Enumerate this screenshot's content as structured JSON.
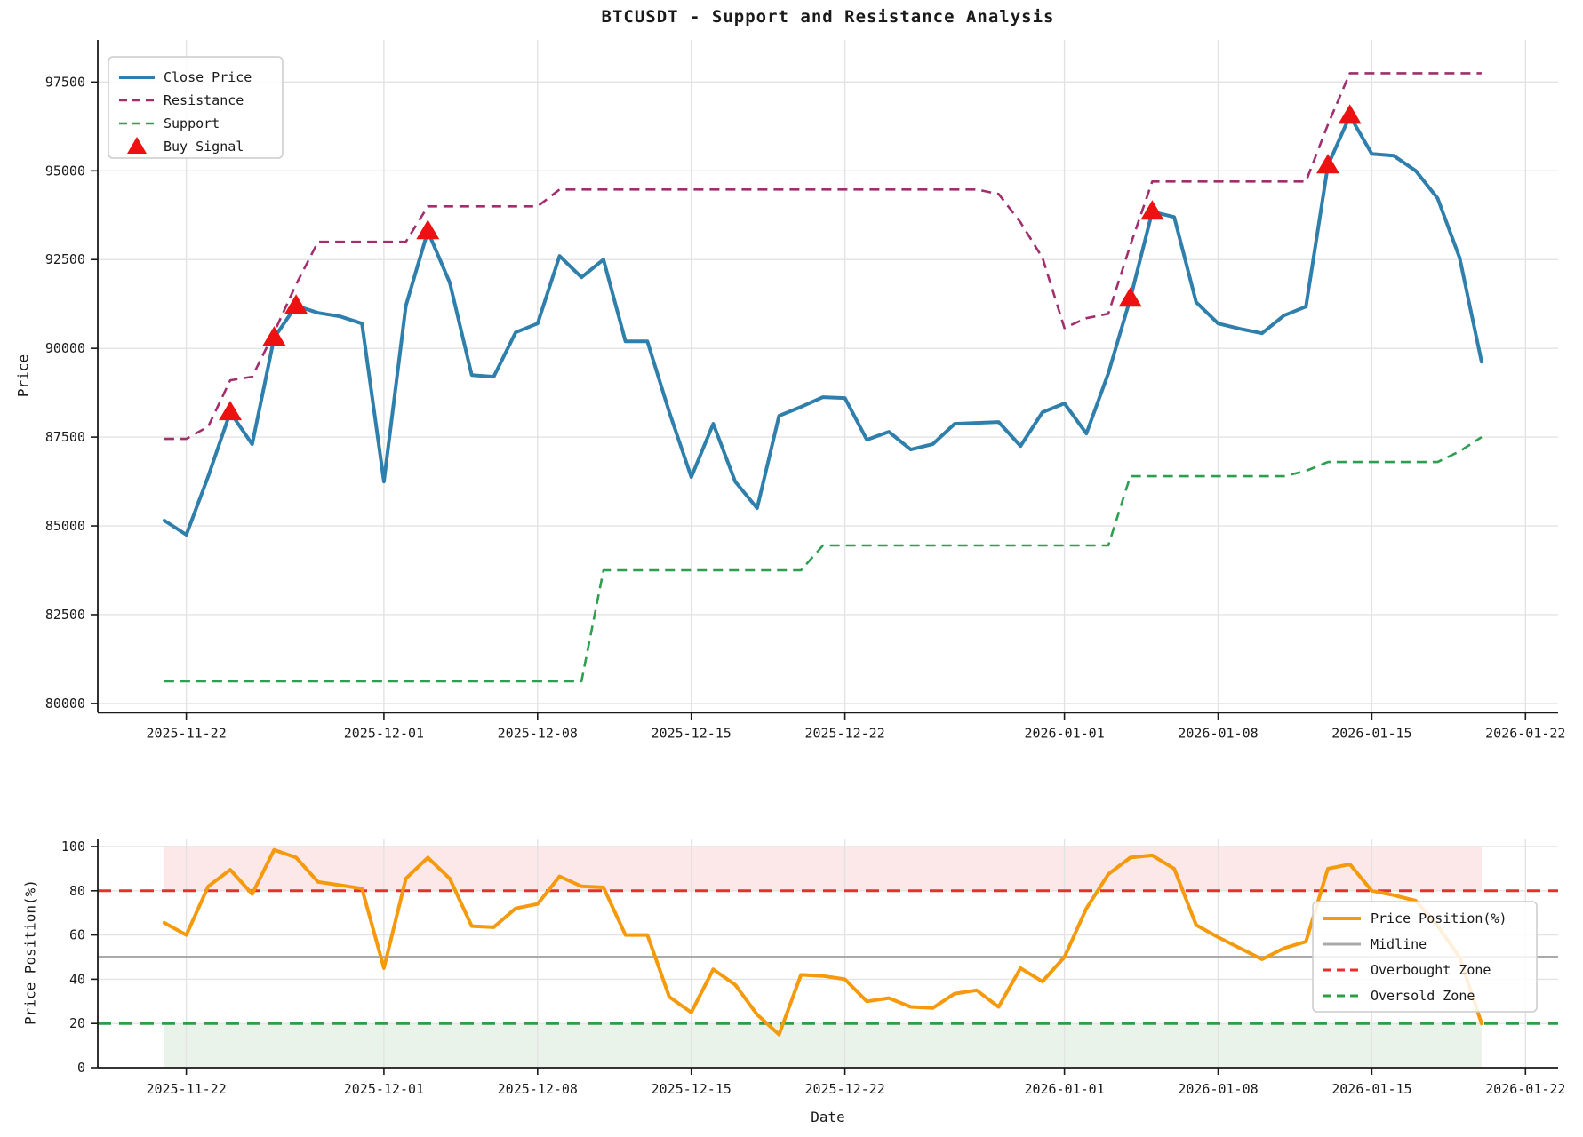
{
  "title": "BTCUSDT - Support and Resistance Analysis",
  "colors": {
    "close": "#2f7fad",
    "resistance": "#a12e6d",
    "support": "#2e9e50",
    "buy_signal": "#ee1111",
    "price_position": "#f59a0c",
    "midline": "#aaaaaa",
    "overbought": "#e63030",
    "oversold": "#2e9e45",
    "overbought_fill": "rgba(230,80,80,0.13)",
    "oversold_fill": "rgba(90,165,90,0.13)",
    "grid": "#e3e3e3",
    "spine": "#1a1a1a",
    "legend_border": "#cccccc",
    "legend_bg": "rgba(255,255,255,0.85)"
  },
  "top_chart": {
    "ylabel": "Price",
    "legend": [
      "Close Price",
      "Resistance",
      "Support",
      "Buy Signal"
    ]
  },
  "bottom_chart": {
    "ylabel": "Price Position(%)",
    "xlabel": "Date",
    "legend": [
      "Price Position(%)",
      "Midline",
      "Overbought Zone",
      "Oversold Zone"
    ]
  },
  "chart_data": [
    {
      "type": "line",
      "title": "BTCUSDT - Support and Resistance Analysis",
      "ylabel": "Price",
      "ylim": [
        79740,
        98685
      ],
      "yticks": [
        80000,
        82500,
        85000,
        87500,
        90000,
        92500,
        95000,
        97500
      ],
      "xticks": [
        "2025-11-22",
        "2025-12-01",
        "2025-12-08",
        "2025-12-15",
        "2025-12-22",
        "2026-01-01",
        "2026-01-08",
        "2026-01-15",
        "2026-01-22"
      ],
      "grid": true,
      "legend_position": "upper left",
      "x": [
        "2025-11-21",
        "2025-11-22",
        "2025-11-23",
        "2025-11-24",
        "2025-11-25",
        "2025-11-26",
        "2025-11-27",
        "2025-11-28",
        "2025-11-29",
        "2025-11-30",
        "2025-12-01",
        "2025-12-02",
        "2025-12-03",
        "2025-12-04",
        "2025-12-05",
        "2025-12-06",
        "2025-12-07",
        "2025-12-08",
        "2025-12-09",
        "2025-12-10",
        "2025-12-11",
        "2025-12-12",
        "2025-12-13",
        "2025-12-14",
        "2025-12-15",
        "2025-12-16",
        "2025-12-17",
        "2025-12-18",
        "2025-12-19",
        "2025-12-20",
        "2025-12-21",
        "2025-12-22",
        "2025-12-23",
        "2025-12-24",
        "2025-12-25",
        "2025-12-26",
        "2025-12-27",
        "2025-12-28",
        "2025-12-29",
        "2025-12-30",
        "2025-12-31",
        "2026-01-01",
        "2026-01-02",
        "2026-01-03",
        "2026-01-04",
        "2026-01-05",
        "2026-01-06",
        "2026-01-07",
        "2026-01-08",
        "2026-01-09",
        "2026-01-10",
        "2026-01-11",
        "2026-01-12",
        "2026-01-13",
        "2026-01-14",
        "2026-01-15",
        "2026-01-16",
        "2026-01-17",
        "2026-01-18",
        "2026-01-19",
        "2026-01-20"
      ],
      "series": [
        {
          "name": "Close Price",
          "values": [
            85150,
            84750,
            86400,
            88200,
            87300,
            90300,
            91200,
            91000,
            90900,
            90700,
            86250,
            91200,
            93300,
            91850,
            89250,
            89200,
            90450,
            90700,
            92600,
            92000,
            92500,
            90200,
            90200,
            88200,
            86375,
            87875,
            86250,
            85500,
            88100,
            88350,
            88625,
            88600,
            87425,
            87650,
            87150,
            87300,
            87875,
            87900,
            87925,
            87250,
            88200,
            88450,
            87600,
            89300,
            91400,
            93850,
            93700,
            91300,
            90700,
            90550,
            90425,
            90925,
            91175,
            95150,
            96550,
            95475,
            95425,
            95000,
            94225,
            92550,
            89625
          ]
        },
        {
          "name": "Resistance",
          "values": [
            87450,
            87450,
            87800,
            89100,
            89200,
            90450,
            91800,
            93000,
            93000,
            93000,
            93000,
            93000,
            94000,
            94000,
            94000,
            94000,
            94000,
            94000,
            94475,
            94475,
            94475,
            94475,
            94475,
            94475,
            94475,
            94475,
            94475,
            94475,
            94475,
            94475,
            94475,
            94475,
            94475,
            94475,
            94475,
            94475,
            94475,
            94475,
            94350,
            93550,
            92550,
            90575,
            90850,
            90975,
            92900,
            94700,
            94700,
            94700,
            94700,
            94700,
            94700,
            94700,
            94700,
            96300,
            97750,
            97750,
            97750,
            97750,
            97750,
            97750,
            97750
          ]
        },
        {
          "name": "Support",
          "values": [
            80625,
            80625,
            80625,
            80625,
            80625,
            80625,
            80625,
            80625,
            80625,
            80625,
            80625,
            80625,
            80625,
            80625,
            80625,
            80625,
            80625,
            80625,
            80625,
            80625,
            83750,
            83750,
            83750,
            83750,
            83750,
            83750,
            83750,
            83750,
            83750,
            83750,
            84450,
            84450,
            84450,
            84450,
            84450,
            84450,
            84450,
            84450,
            84450,
            84450,
            84450,
            84450,
            84450,
            84450,
            86400,
            86400,
            86400,
            86400,
            86400,
            86400,
            86400,
            86400,
            86550,
            86800,
            86800,
            86800,
            86800,
            86800,
            86800,
            87100,
            87500
          ]
        }
      ],
      "buy_signals": {
        "dates": [
          "2025-11-24",
          "2025-11-26",
          "2025-11-27",
          "2025-12-03",
          "2026-01-04",
          "2026-01-05",
          "2026-01-13",
          "2026-01-14"
        ],
        "prices": [
          88200,
          90300,
          91200,
          93300,
          91400,
          93850,
          95150,
          96550
        ]
      }
    },
    {
      "type": "line",
      "xlabel": "Date",
      "ylabel": "Price Position(%)",
      "ylim": [
        0,
        103.2
      ],
      "yticks": [
        0,
        20,
        40,
        60,
        80,
        100
      ],
      "xticks": [
        "2025-11-22",
        "2025-12-01",
        "2025-12-08",
        "2025-12-15",
        "2025-12-22",
        "2026-01-01",
        "2026-01-08",
        "2026-01-15",
        "2026-01-22"
      ],
      "grid": true,
      "legend_position": "center right",
      "midline": 50,
      "overbought_level": 80,
      "oversold_level": 20,
      "x": [
        "2025-11-21",
        "2025-11-22",
        "2025-11-23",
        "2025-11-24",
        "2025-11-25",
        "2025-11-26",
        "2025-11-27",
        "2025-11-28",
        "2025-11-29",
        "2025-11-30",
        "2025-12-01",
        "2025-12-02",
        "2025-12-03",
        "2025-12-04",
        "2025-12-05",
        "2025-12-06",
        "2025-12-07",
        "2025-12-08",
        "2025-12-09",
        "2025-12-10",
        "2025-12-11",
        "2025-12-12",
        "2025-12-13",
        "2025-12-14",
        "2025-12-15",
        "2025-12-16",
        "2025-12-17",
        "2025-12-18",
        "2025-12-19",
        "2025-12-20",
        "2025-12-21",
        "2025-12-22",
        "2025-12-23",
        "2025-12-24",
        "2025-12-25",
        "2025-12-26",
        "2025-12-27",
        "2025-12-28",
        "2025-12-29",
        "2025-12-30",
        "2025-12-31",
        "2026-01-01",
        "2026-01-02",
        "2026-01-03",
        "2026-01-04",
        "2026-01-05",
        "2026-01-06",
        "2026-01-07",
        "2026-01-08",
        "2026-01-09",
        "2026-01-10",
        "2026-01-11",
        "2026-01-12",
        "2026-01-13",
        "2026-01-14",
        "2026-01-15",
        "2026-01-16",
        "2026-01-17",
        "2026-01-18",
        "2026-01-19",
        "2026-01-20"
      ],
      "series": [
        {
          "name": "Price Position(%)",
          "values": [
            65.5,
            60,
            82,
            89.5,
            78.5,
            98.5,
            95,
            84,
            82.5,
            81,
            45,
            85.5,
            95,
            85.5,
            64,
            63.5,
            72,
            74,
            86.5,
            82,
            81.5,
            60,
            60,
            32,
            25,
            44.5,
            37.5,
            24,
            15,
            42,
            41.5,
            40,
            30,
            31.5,
            27.5,
            27,
            33.5,
            35,
            27.5,
            45,
            39,
            50,
            72,
            87.5,
            95,
            96,
            90,
            64.5,
            59,
            54,
            49,
            54,
            57,
            90,
            92,
            80,
            78,
            75.5,
            64,
            50,
            20
          ]
        }
      ]
    }
  ]
}
